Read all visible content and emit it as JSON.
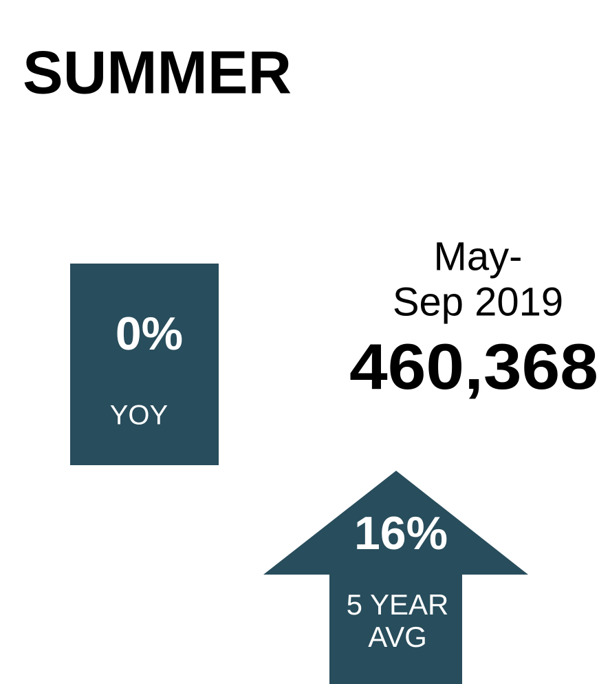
{
  "title": "SUMMER",
  "total": {
    "period_lines": [
      "May-",
      "Sep 2019"
    ],
    "value": "460,368"
  },
  "yoy": {
    "value": "0%",
    "label": "YOY"
  },
  "five_year": {
    "value": "16%",
    "label_lines": [
      "5 YEAR",
      "AVG"
    ]
  }
}
